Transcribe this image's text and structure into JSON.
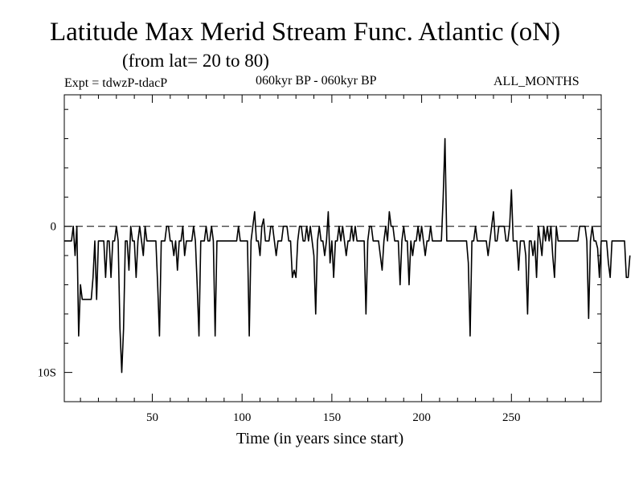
{
  "header": {
    "title": "Latitude Max Merid Stream Func. Atlantic (oN)",
    "subtitle": "(from lat= 20 to 80)",
    "expt": "Expt = tdwzP-tdacP",
    "period": "060kyr BP - 060kyr BP",
    "months": "ALL_MONTHS"
  },
  "chart_data": {
    "type": "line",
    "title": "Latitude Max Merid Stream Func. Atlantic (oN)",
    "xlabel": "Time (in years since start)",
    "ylabel": "",
    "xlim": [
      1,
      300
    ],
    "ylim": [
      -12,
      9
    ],
    "x_ticks": [
      50,
      100,
      150,
      200,
      250
    ],
    "x_tick_labels": [
      "50",
      "100",
      "150",
      "200",
      "250"
    ],
    "y_ticks": [
      0,
      -10
    ],
    "y_tick_labels": [
      "0",
      "10S"
    ],
    "zero_line": "dashed",
    "grid": false,
    "series": [
      {
        "x_start": 1,
        "x_step": 1,
        "values": [
          -1,
          -1,
          -1,
          -1,
          -1,
          0,
          -2,
          0,
          -7.5,
          -4,
          -5,
          -5,
          -5,
          -5,
          -5,
          -5,
          -3.5,
          -1,
          -5,
          -1,
          -1,
          -1,
          -1,
          -3.5,
          -1,
          -1,
          -3.5,
          -1,
          -1,
          0,
          -1,
          -7,
          -10,
          -7,
          -1,
          -1,
          -3,
          0,
          -1,
          -1,
          -3.5,
          -1,
          0,
          -1,
          -2,
          0,
          -1,
          -1,
          -1,
          -1,
          -1,
          -1,
          -4,
          -7.5,
          -1,
          -1,
          -1,
          0,
          0,
          -1,
          -1,
          -2,
          -1,
          -3,
          -1,
          -1,
          0,
          -2,
          -1,
          -1,
          -1,
          -1,
          0,
          -1,
          -4,
          -7.5,
          -1,
          -1,
          -1,
          0,
          -1,
          -1,
          0,
          -1,
          -7.5,
          -1,
          -1,
          -1,
          -1,
          -1,
          -1,
          -1,
          -1,
          -1,
          -1,
          -1,
          -1,
          0,
          -1,
          -1,
          -1,
          -1,
          -1,
          -7.5,
          -1,
          0,
          1,
          -1,
          -1,
          -2,
          0,
          0.5,
          -1,
          -1,
          -1,
          0,
          0,
          -1,
          -2,
          -1,
          -1,
          -1,
          0,
          0,
          0,
          -1,
          -1,
          -3.5,
          -3,
          -3.5,
          -1,
          0,
          0,
          -1,
          -1,
          0,
          -1,
          0,
          -1,
          -2,
          -6,
          -1,
          0,
          -1,
          -1,
          -2,
          -1,
          1,
          -2.5,
          -1,
          -3.5,
          -1,
          -1,
          0,
          -1,
          0,
          -1,
          -2,
          -1,
          -1,
          0,
          -1,
          0,
          -1,
          -1,
          -1,
          -1,
          -1,
          -6,
          -1,
          0,
          0,
          -1,
          -1,
          -1,
          -1,
          -2,
          -3,
          -1,
          0,
          -1,
          1,
          0,
          0,
          -1,
          -1,
          -1,
          -4,
          -1,
          0,
          -1,
          -1,
          -4,
          -1,
          -2,
          -1,
          -1,
          0,
          -1,
          0,
          -1,
          -2,
          -1,
          -1,
          0,
          -1,
          -1,
          -1,
          -1,
          -1,
          -1,
          2,
          6,
          -1,
          -1,
          -1,
          -1,
          -1,
          -1,
          -1,
          -1,
          -1,
          -1,
          -1,
          -1,
          -2.5,
          -7.5,
          -1,
          -1,
          0,
          -1,
          -1,
          -1,
          -1,
          -1,
          -1,
          -2,
          -1,
          0,
          1,
          -1,
          -1,
          0,
          0,
          0,
          0,
          -1,
          -1,
          0,
          2.5,
          -1,
          -1,
          -1,
          -3,
          -1,
          -1,
          -1,
          -2,
          -6,
          -1,
          -1,
          -2,
          -1,
          -3.5,
          0,
          -1,
          -2,
          0,
          -1,
          0,
          -1,
          0,
          -2,
          -3.5,
          0,
          -1,
          -1,
          -1,
          -1,
          -1,
          -1,
          -1,
          -1,
          -1,
          -1,
          -1,
          -1,
          0,
          0,
          0,
          0,
          -1,
          -6.3,
          -1,
          0,
          -1,
          -1,
          -1.5,
          -3.5,
          -1,
          -1,
          -1,
          -1,
          -2.5,
          -3.5,
          -1,
          -1,
          -1,
          -1,
          -1,
          -1,
          -1,
          -1,
          -3.5,
          -3.5,
          -2
        ]
      }
    ]
  }
}
